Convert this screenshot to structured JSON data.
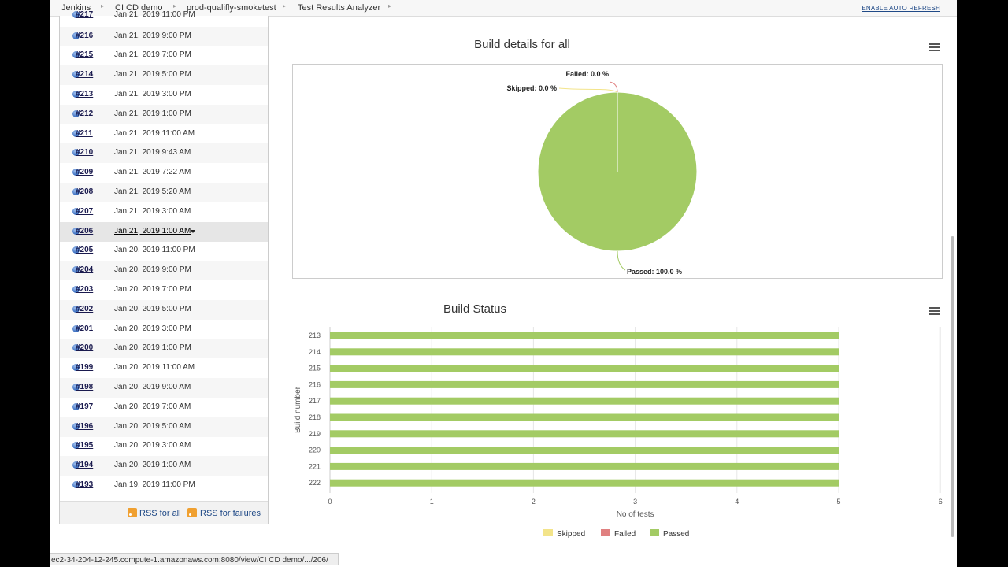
{
  "breadcrumb": [
    "Jenkins",
    "CI CD demo",
    "prod-qualifly-smoketest",
    "Test Results Analyzer"
  ],
  "auto_refresh_label": "ENABLE AUTO REFRESH",
  "partial_top_row": {
    "num": "#217",
    "date": "Jan 21, 2019 11:00 PM"
  },
  "builds": [
    {
      "num": "#216",
      "date": "Jan 21, 2019 9:00 PM"
    },
    {
      "num": "#215",
      "date": "Jan 21, 2019 7:00 PM"
    },
    {
      "num": "#214",
      "date": "Jan 21, 2019 5:00 PM"
    },
    {
      "num": "#213",
      "date": "Jan 21, 2019 3:00 PM"
    },
    {
      "num": "#212",
      "date": "Jan 21, 2019 1:00 PM"
    },
    {
      "num": "#211",
      "date": "Jan 21, 2019 11:00 AM"
    },
    {
      "num": "#210",
      "date": "Jan 21, 2019 9:43 AM"
    },
    {
      "num": "#209",
      "date": "Jan 21, 2019 7:22 AM"
    },
    {
      "num": "#208",
      "date": "Jan 21, 2019 5:20 AM"
    },
    {
      "num": "#207",
      "date": "Jan 21, 2019 3:00 AM"
    },
    {
      "num": "#206",
      "date": "Jan 21, 2019 1:00 AM",
      "selected": true
    },
    {
      "num": "#205",
      "date": "Jan 20, 2019 11:00 PM"
    },
    {
      "num": "#204",
      "date": "Jan 20, 2019 9:00 PM"
    },
    {
      "num": "#203",
      "date": "Jan 20, 2019 7:00 PM"
    },
    {
      "num": "#202",
      "date": "Jan 20, 2019 5:00 PM"
    },
    {
      "num": "#201",
      "date": "Jan 20, 2019 3:00 PM"
    },
    {
      "num": "#200",
      "date": "Jan 20, 2019 1:00 PM"
    },
    {
      "num": "#199",
      "date": "Jan 20, 2019 11:00 AM"
    },
    {
      "num": "#198",
      "date": "Jan 20, 2019 9:00 AM"
    },
    {
      "num": "#197",
      "date": "Jan 20, 2019 7:00 AM"
    },
    {
      "num": "#196",
      "date": "Jan 20, 2019 5:00 AM"
    },
    {
      "num": "#195",
      "date": "Jan 20, 2019 3:00 AM"
    },
    {
      "num": "#194",
      "date": "Jan 20, 2019 1:00 AM"
    },
    {
      "num": "#193",
      "date": "Jan 19, 2019 11:00 PM"
    }
  ],
  "footer": {
    "rss_all": "RSS for all",
    "rss_failures": "RSS for failures"
  },
  "status_url": "ec2-34-204-12-245.compute-1.amazonaws.com:8080/view/CI CD demo/.../206/",
  "colors": {
    "passed": "#a3cb64",
    "failed": "#e08080",
    "skipped": "#f3e48a",
    "link": "#204a87"
  },
  "icons": {
    "build_status": "blue-ball-icon",
    "rss": "rss-feed-icon",
    "chart_menu": "hamburger-menu-icon"
  },
  "chart_data": [
    {
      "type": "pie",
      "title": "Build details for all",
      "slices": [
        {
          "name": "Failed",
          "value": 0.0,
          "label": "Failed: 0.0 %"
        },
        {
          "name": "Skipped",
          "value": 0.0,
          "label": "Skipped: 0.0 %"
        },
        {
          "name": "Passed",
          "value": 100.0,
          "label": "Passed: 100.0 %"
        }
      ]
    },
    {
      "type": "bar",
      "orientation": "horizontal",
      "stacked": true,
      "title": "Build Status",
      "xlabel": "No of tests",
      "ylabel": "Build number",
      "categories": [
        "213",
        "214",
        "215",
        "216",
        "217",
        "218",
        "219",
        "220",
        "221",
        "222"
      ],
      "xlim": [
        0,
        6
      ],
      "xticks": [
        "0",
        "1",
        "2",
        "3",
        "4",
        "5",
        "6"
      ],
      "series": [
        {
          "name": "Skipped",
          "values": [
            0,
            0,
            0,
            0,
            0,
            0,
            0,
            0,
            0,
            0
          ]
        },
        {
          "name": "Failed",
          "values": [
            0,
            0,
            0,
            0,
            0,
            0,
            0,
            0,
            0,
            0
          ]
        },
        {
          "name": "Passed",
          "values": [
            5,
            5,
            5,
            5,
            5,
            5,
            5,
            5,
            5,
            5
          ]
        }
      ],
      "legend": "bottom",
      "grid": true
    }
  ]
}
